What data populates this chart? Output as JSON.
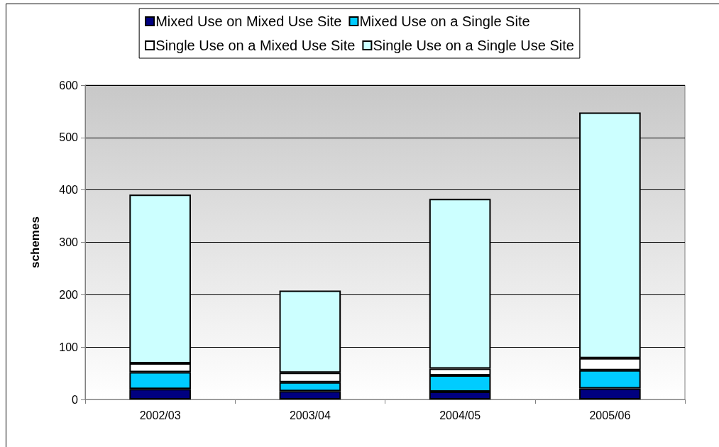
{
  "chart_data": {
    "type": "bar",
    "ylabel": "schemes",
    "categories": [
      "2002/03",
      "2003/04",
      "2004/05",
      "2005/06"
    ],
    "stacked": true,
    "series": [
      {
        "name": "Mixed Use on Mixed Use Site",
        "color": "#000080",
        "values": [
          20,
          16,
          15,
          21
        ]
      },
      {
        "name": "Mixed Use on a Single Site",
        "color": "#00ccff",
        "values": [
          32,
          17,
          31,
          35
        ]
      },
      {
        "name": "Single Use on a Mixed Use Site",
        "color": "#ffffff",
        "values": [
          17,
          18,
          13,
          23
        ]
      },
      {
        "name": "Single Use on a Single Use Site",
        "color": "#ccffff",
        "values": [
          322,
          157,
          324,
          469
        ]
      }
    ],
    "ylim": [
      0,
      600
    ],
    "yticks": [
      0,
      100,
      200,
      300,
      400,
      500,
      600
    ],
    "grid": "y",
    "legend": "top"
  }
}
